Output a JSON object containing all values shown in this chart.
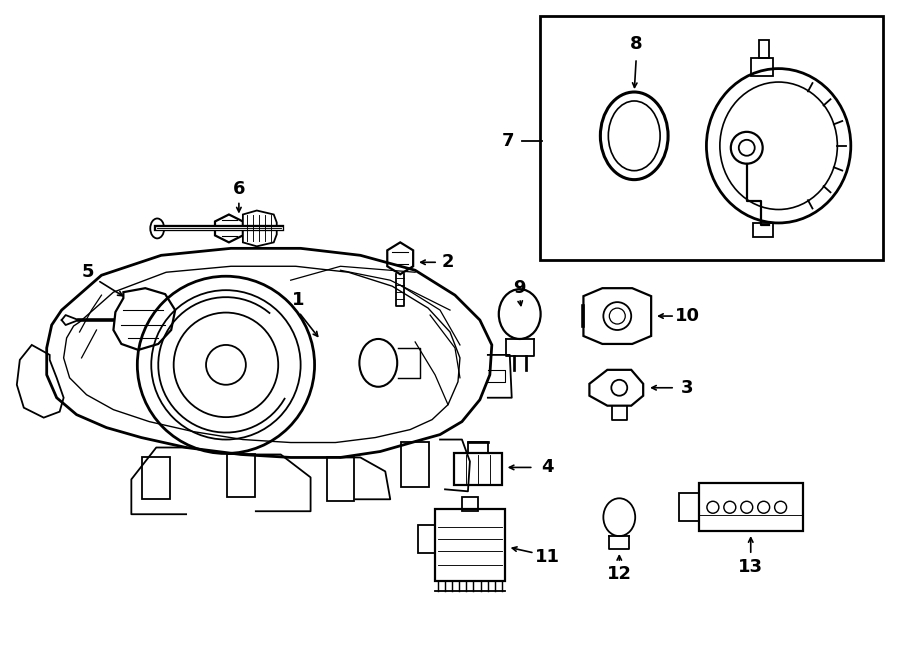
{
  "bg_color": "#ffffff",
  "line_color": "#000000",
  "figsize": [
    9.0,
    6.61
  ],
  "dpi": 100
}
